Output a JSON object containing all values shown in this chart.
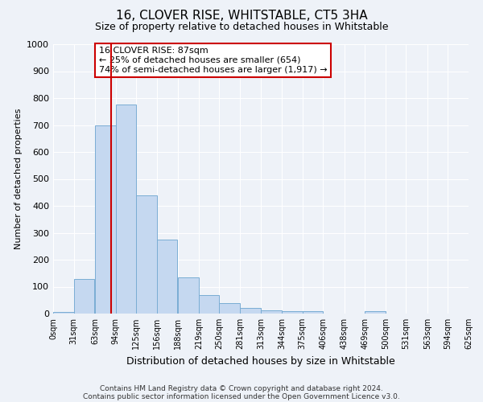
{
  "title": "16, CLOVER RISE, WHITSTABLE, CT5 3HA",
  "subtitle": "Size of property relative to detached houses in Whitstable",
  "xlabel": "Distribution of detached houses by size in Whitstable",
  "ylabel": "Number of detached properties",
  "bar_color": "#c5d8f0",
  "bar_edge_color": "#7aadd4",
  "background_color": "#eef2f8",
  "grid_color": "#ffffff",
  "categories": [
    "0sqm",
    "31sqm",
    "63sqm",
    "94sqm",
    "125sqm",
    "156sqm",
    "188sqm",
    "219sqm",
    "250sqm",
    "281sqm",
    "313sqm",
    "344sqm",
    "375sqm",
    "406sqm",
    "438sqm",
    "469sqm",
    "500sqm",
    "531sqm",
    "563sqm",
    "594sqm",
    "625sqm"
  ],
  "values": [
    5,
    127,
    700,
    775,
    440,
    275,
    133,
    68,
    38,
    22,
    12,
    10,
    8,
    0,
    0,
    10,
    0,
    0,
    0,
    0,
    0
  ],
  "bin_edges": [
    0,
    31,
    63,
    94,
    125,
    156,
    188,
    219,
    250,
    281,
    313,
    344,
    375,
    406,
    438,
    469,
    500,
    531,
    563,
    594,
    625
  ],
  "ylim": [
    0,
    1000
  ],
  "yticks": [
    0,
    100,
    200,
    300,
    400,
    500,
    600,
    700,
    800,
    900,
    1000
  ],
  "vline_x": 87,
  "vline_color": "#cc0000",
  "annotation_title": "16 CLOVER RISE: 87sqm",
  "annotation_line1": "← 25% of detached houses are smaller (654)",
  "annotation_line2": "74% of semi-detached houses are larger (1,917) →",
  "annotation_box_color": "#ffffff",
  "annotation_box_edge": "#cc0000",
  "footer_line1": "Contains HM Land Registry data © Crown copyright and database right 2024.",
  "footer_line2": "Contains public sector information licensed under the Open Government Licence v3.0."
}
